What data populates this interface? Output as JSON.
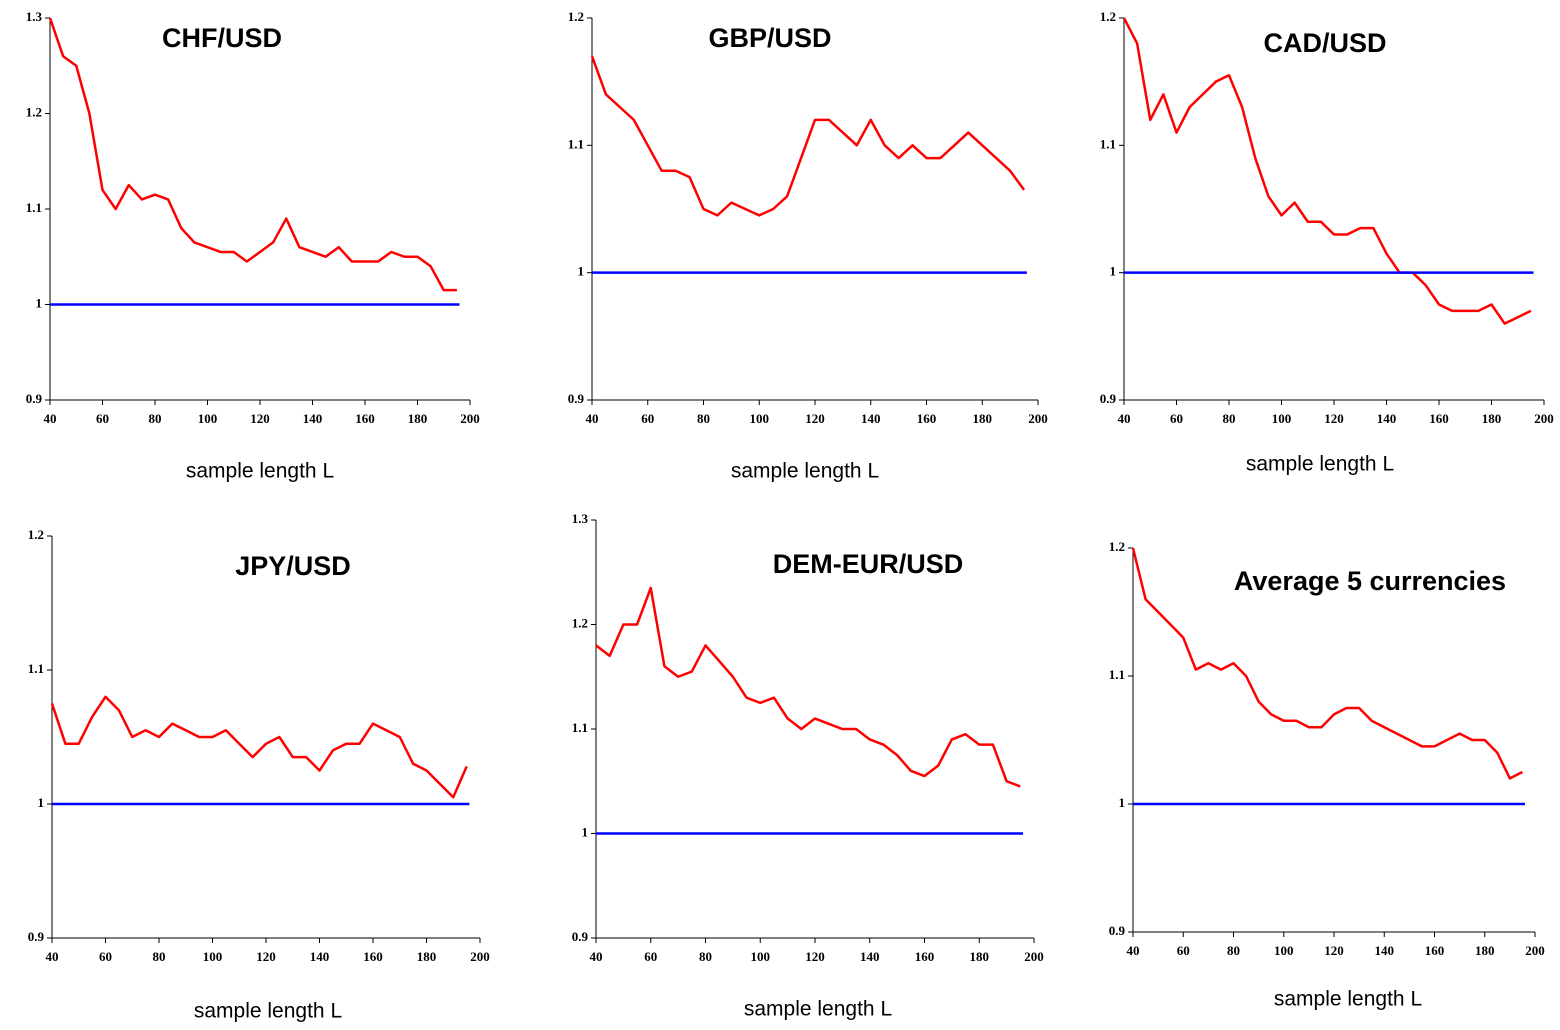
{
  "chart_data": [
    {
      "type": "line",
      "title": "CHF/USD",
      "x_label": "sample length L",
      "x": [
        40,
        45,
        50,
        55,
        60,
        65,
        70,
        75,
        80,
        85,
        90,
        95,
        100,
        105,
        110,
        115,
        120,
        125,
        130,
        135,
        140,
        145,
        150,
        155,
        160,
        165,
        170,
        175,
        180,
        185,
        190,
        195
      ],
      "series": [
        {
          "color": "#ff0000",
          "values": [
            1.3,
            1.26,
            1.25,
            1.2,
            1.12,
            1.1,
            1.125,
            1.11,
            1.115,
            1.11,
            1.08,
            1.065,
            1.06,
            1.055,
            1.055,
            1.045,
            1.055,
            1.065,
            1.09,
            1.06,
            1.055,
            1.05,
            1.06,
            1.045,
            1.045,
            1.045,
            1.055,
            1.05,
            1.05,
            1.04,
            1.015,
            1.015
          ]
        },
        {
          "color": "#0000ff",
          "x": [
            40,
            196
          ],
          "values": [
            1,
            1
          ]
        }
      ],
      "xlim": [
        40,
        200
      ],
      "ylim": [
        0.9,
        1.3
      ],
      "xticks": [
        40,
        60,
        80,
        100,
        120,
        140,
        160,
        180,
        200
      ],
      "yticks": [
        0.9,
        1,
        1.1,
        1.2,
        1.3
      ]
    },
    {
      "type": "line",
      "title": "GBP/USD",
      "x_label": "sample length L",
      "x": [
        40,
        45,
        50,
        55,
        60,
        65,
        70,
        75,
        80,
        85,
        90,
        95,
        100,
        105,
        110,
        115,
        120,
        125,
        130,
        135,
        140,
        145,
        150,
        155,
        160,
        165,
        170,
        175,
        180,
        185,
        190,
        195
      ],
      "series": [
        {
          "color": "#ff0000",
          "values": [
            1.17,
            1.14,
            1.13,
            1.12,
            1.1,
            1.08,
            1.08,
            1.075,
            1.05,
            1.045,
            1.055,
            1.05,
            1.045,
            1.05,
            1.06,
            1.09,
            1.12,
            1.12,
            1.11,
            1.1,
            1.12,
            1.1,
            1.09,
            1.1,
            1.09,
            1.09,
            1.1,
            1.11,
            1.1,
            1.09,
            1.08,
            1.065
          ]
        },
        {
          "color": "#0000ff",
          "x": [
            40,
            196
          ],
          "values": [
            1,
            1
          ]
        }
      ],
      "xlim": [
        40,
        200
      ],
      "ylim": [
        0.9,
        1.2
      ],
      "xticks": [
        40,
        60,
        80,
        100,
        120,
        140,
        160,
        180,
        200
      ],
      "yticks": [
        0.9,
        1,
        1.1,
        1.2
      ]
    },
    {
      "type": "line",
      "title": "CAD/USD",
      "x_label": "sample length L",
      "x": [
        40,
        45,
        50,
        55,
        60,
        65,
        70,
        75,
        80,
        85,
        90,
        95,
        100,
        105,
        110,
        115,
        120,
        125,
        130,
        135,
        140,
        145,
        150,
        155,
        160,
        165,
        170,
        175,
        180,
        185,
        190,
        195
      ],
      "series": [
        {
          "color": "#ff0000",
          "values": [
            1.2,
            1.18,
            1.12,
            1.14,
            1.11,
            1.13,
            1.14,
            1.15,
            1.155,
            1.13,
            1.09,
            1.06,
            1.045,
            1.055,
            1.04,
            1.04,
            1.03,
            1.03,
            1.035,
            1.035,
            1.015,
            1.0,
            1.0,
            0.99,
            0.975,
            0.97,
            0.97,
            0.97,
            0.975,
            0.96,
            0.965,
            0.97
          ]
        },
        {
          "color": "#0000ff",
          "x": [
            40,
            196
          ],
          "values": [
            1,
            1
          ]
        }
      ],
      "xlim": [
        40,
        200
      ],
      "ylim": [
        0.9,
        1.2
      ],
      "xticks": [
        40,
        60,
        80,
        100,
        120,
        140,
        160,
        180,
        200
      ],
      "yticks": [
        0.9,
        1,
        1.1,
        1.2
      ]
    },
    {
      "type": "line",
      "title": "JPY/USD",
      "x_label": "sample length L",
      "x": [
        40,
        45,
        50,
        55,
        60,
        65,
        70,
        75,
        80,
        85,
        90,
        95,
        100,
        105,
        110,
        115,
        120,
        125,
        130,
        135,
        140,
        145,
        150,
        155,
        160,
        165,
        170,
        175,
        180,
        185,
        190,
        195
      ],
      "series": [
        {
          "color": "#ff0000",
          "values": [
            1.075,
            1.045,
            1.045,
            1.065,
            1.08,
            1.07,
            1.05,
            1.055,
            1.05,
            1.06,
            1.055,
            1.05,
            1.05,
            1.055,
            1.045,
            1.035,
            1.045,
            1.05,
            1.035,
            1.035,
            1.025,
            1.04,
            1.045,
            1.045,
            1.06,
            1.055,
            1.05,
            1.03,
            1.025,
            1.015,
            1.005,
            1.028
          ]
        },
        {
          "color": "#0000ff",
          "x": [
            40,
            196
          ],
          "values": [
            1,
            1
          ]
        }
      ],
      "xlim": [
        40,
        200
      ],
      "ylim": [
        0.9,
        1.2
      ],
      "xticks": [
        40,
        60,
        80,
        100,
        120,
        140,
        160,
        180,
        200
      ],
      "yticks": [
        0.9,
        1,
        1.1,
        1.2
      ]
    },
    {
      "type": "line",
      "title": "DEM-EUR/USD",
      "x_label": "sample length L",
      "x": [
        40,
        45,
        50,
        55,
        60,
        65,
        70,
        75,
        80,
        85,
        90,
        95,
        100,
        105,
        110,
        115,
        120,
        125,
        130,
        135,
        140,
        145,
        150,
        155,
        160,
        165,
        170,
        175,
        180,
        185,
        190,
        195
      ],
      "series": [
        {
          "color": "#ff0000",
          "values": [
            1.18,
            1.17,
            1.2,
            1.2,
            1.235,
            1.16,
            1.15,
            1.155,
            1.18,
            1.165,
            1.15,
            1.13,
            1.125,
            1.13,
            1.11,
            1.1,
            1.11,
            1.105,
            1.1,
            1.1,
            1.09,
            1.085,
            1.075,
            1.06,
            1.055,
            1.065,
            1.09,
            1.095,
            1.085,
            1.085,
            1.05,
            1.045
          ]
        },
        {
          "color": "#0000ff",
          "x": [
            40,
            196
          ],
          "values": [
            1,
            1
          ]
        }
      ],
      "xlim": [
        40,
        200
      ],
      "ylim": [
        0.9,
        1.3
      ],
      "xticks": [
        40,
        60,
        80,
        100,
        120,
        140,
        160,
        180,
        200
      ],
      "yticks": [
        0.9,
        1,
        1.1,
        1.2,
        1.3
      ]
    },
    {
      "type": "line",
      "title": "Average 5 currencies",
      "x_label": "sample length L",
      "x": [
        40,
        45,
        50,
        55,
        60,
        65,
        70,
        75,
        80,
        85,
        90,
        95,
        100,
        105,
        110,
        115,
        120,
        125,
        130,
        135,
        140,
        145,
        150,
        155,
        160,
        165,
        170,
        175,
        180,
        185,
        190,
        195
      ],
      "series": [
        {
          "color": "#ff0000",
          "values": [
            1.2,
            1.16,
            1.15,
            1.14,
            1.13,
            1.105,
            1.11,
            1.105,
            1.11,
            1.1,
            1.08,
            1.07,
            1.065,
            1.065,
            1.06,
            1.06,
            1.07,
            1.075,
            1.075,
            1.065,
            1.06,
            1.055,
            1.05,
            1.045,
            1.045,
            1.05,
            1.055,
            1.05,
            1.05,
            1.04,
            1.02,
            1.025
          ]
        },
        {
          "color": "#0000ff",
          "x": [
            40,
            196
          ],
          "values": [
            1,
            1
          ]
        }
      ],
      "xlim": [
        40,
        200
      ],
      "ylim": [
        0.9,
        1.2
      ],
      "xticks": [
        40,
        60,
        80,
        100,
        120,
        140,
        160,
        180,
        200
      ],
      "yticks": [
        0.9,
        1,
        1.1,
        1.2
      ]
    }
  ]
}
